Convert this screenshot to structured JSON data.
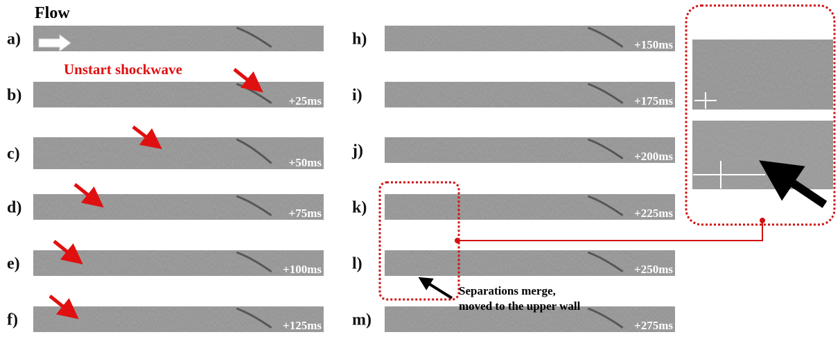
{
  "header": {
    "title": "Flow"
  },
  "annotations": {
    "unstart": "Unstart shockwave",
    "merge_line1": "Separations merge,",
    "merge_line2": "moved to the upper wall"
  },
  "panels": [
    {
      "label": "a)"
    },
    {
      "label": "b)",
      "time": "+25ms"
    },
    {
      "label": "c)",
      "time": "+50ms"
    },
    {
      "label": "d)",
      "time": "+75ms"
    },
    {
      "label": "e)",
      "time": "+100ms"
    },
    {
      "label": "f)",
      "time": "+125ms"
    },
    {
      "label": "h)",
      "time": "+150ms"
    },
    {
      "label": "i)",
      "time": "+175ms"
    },
    {
      "label": "j)",
      "time": "+200ms"
    },
    {
      "label": "k)",
      "time": "+225ms"
    },
    {
      "label": "l)",
      "time": "+250ms"
    },
    {
      "label": "m)",
      "time": "+275ms"
    }
  ]
}
